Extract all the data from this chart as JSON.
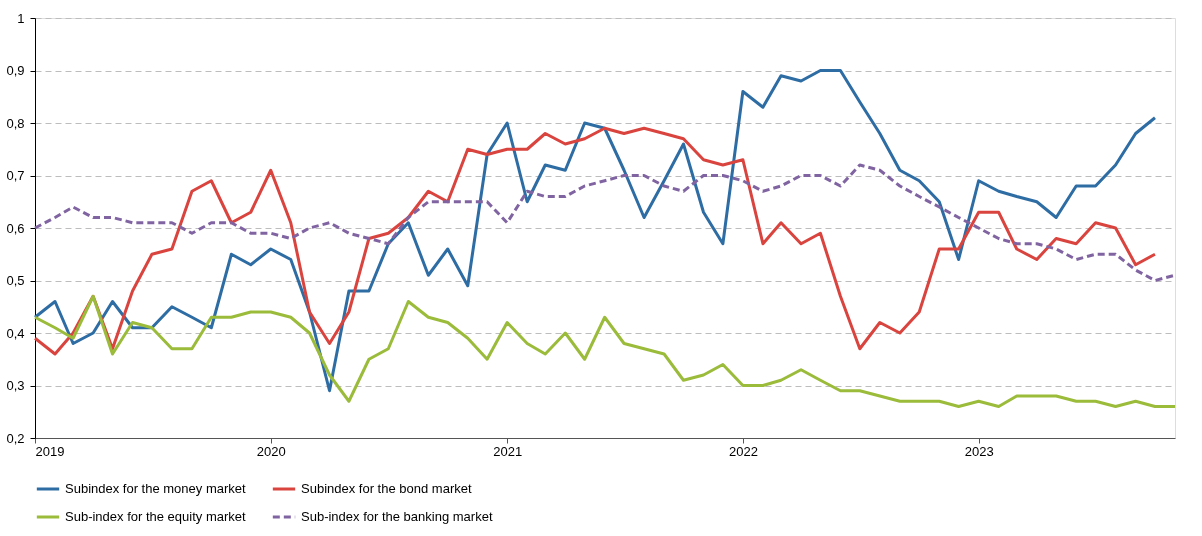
{
  "chart_data": {
    "type": "line",
    "x": [
      "2019-01",
      "2019-02",
      "2019-03",
      "2019-04",
      "2019-05",
      "2019-06",
      "2019-07",
      "2019-08",
      "2019-09",
      "2019-10",
      "2019-11",
      "2019-12",
      "2020-01",
      "2020-02",
      "2020-03",
      "2020-04",
      "2020-05",
      "2020-06",
      "2020-07",
      "2020-08",
      "2020-09",
      "2020-10",
      "2020-11",
      "2020-12",
      "2021-01",
      "2021-02",
      "2021-03",
      "2021-04",
      "2021-05",
      "2021-06",
      "2021-07",
      "2021-08",
      "2021-09",
      "2021-10",
      "2021-11",
      "2021-12",
      "2022-01",
      "2022-02",
      "2022-03",
      "2022-04",
      "2022-05",
      "2022-06",
      "2022-07",
      "2022-08",
      "2022-09",
      "2022-10",
      "2022-11",
      "2022-12",
      "2023-01",
      "2023-02",
      "2023-03",
      "2023-04",
      "2023-05",
      "2023-06",
      "2023-07",
      "2023-08",
      "2023-09",
      "2023-10",
      "2023-11"
    ],
    "series": [
      {
        "name": "Subindex for the money market",
        "color": "#2e6ca4",
        "line_style": "solid",
        "values": [
          0.43,
          0.46,
          0.38,
          0.4,
          0.46,
          0.41,
          0.41,
          0.45,
          0.43,
          0.41,
          0.55,
          0.53,
          0.56,
          0.54,
          0.44,
          0.29,
          0.48,
          0.48,
          0.57,
          0.61,
          0.51,
          0.56,
          0.49,
          0.74,
          0.8,
          0.65,
          0.72,
          0.71,
          0.8,
          0.79,
          0.71,
          0.62,
          0.69,
          0.76,
          0.63,
          0.57,
          0.86,
          0.83,
          0.89,
          0.88,
          0.9,
          0.9,
          0.84,
          0.78,
          0.71,
          0.69,
          0.65,
          0.54,
          0.69,
          0.67,
          0.66,
          0.65,
          0.62,
          0.68,
          0.68,
          0.72,
          0.78,
          0.81,
          null
        ]
      },
      {
        "name": "Subindex for the bond market",
        "color": "#d9443f",
        "line_style": "solid",
        "values": [
          0.39,
          0.36,
          0.4,
          0.47,
          0.37,
          0.48,
          0.55,
          0.56,
          0.67,
          0.69,
          0.61,
          0.63,
          0.71,
          0.61,
          0.44,
          0.38,
          0.44,
          0.58,
          0.59,
          0.62,
          0.67,
          0.65,
          0.75,
          0.74,
          0.75,
          0.75,
          0.78,
          0.76,
          0.77,
          0.79,
          0.78,
          0.79,
          0.78,
          0.77,
          0.73,
          0.72,
          0.73,
          0.57,
          0.61,
          0.57,
          0.59,
          0.47,
          0.37,
          0.42,
          0.4,
          0.44,
          0.56,
          0.56,
          0.63,
          0.63,
          0.56,
          0.54,
          0.58,
          0.57,
          0.61,
          0.6,
          0.53,
          0.55,
          null
        ]
      },
      {
        "name": "Sub-index for the equity market",
        "color": "#9bbb3b",
        "line_style": "solid",
        "values": [
          0.43,
          0.41,
          0.39,
          0.47,
          0.36,
          0.42,
          0.41,
          0.37,
          0.37,
          0.43,
          0.43,
          0.44,
          0.44,
          0.43,
          0.4,
          0.32,
          0.27,
          0.35,
          0.37,
          0.46,
          0.43,
          0.42,
          0.39,
          0.35,
          0.42,
          0.38,
          0.36,
          0.4,
          0.35,
          0.43,
          0.38,
          0.37,
          0.36,
          0.31,
          0.32,
          0.34,
          0.3,
          0.3,
          0.31,
          0.33,
          0.31,
          0.29,
          0.29,
          0.28,
          0.27,
          0.27,
          0.27,
          0.26,
          0.27,
          0.26,
          0.28,
          0.28,
          0.28,
          0.27,
          0.27,
          0.26,
          0.27,
          0.26,
          0.26
        ]
      },
      {
        "name": "Sub-index for the banking market",
        "color": "#8064a2",
        "line_style": "dashed",
        "values": [
          0.6,
          0.62,
          0.64,
          0.62,
          0.62,
          0.61,
          0.61,
          0.61,
          0.59,
          0.61,
          0.61,
          0.59,
          0.59,
          0.58,
          0.6,
          0.61,
          0.59,
          0.58,
          0.57,
          0.62,
          0.65,
          0.65,
          0.65,
          0.65,
          0.61,
          0.67,
          0.66,
          0.66,
          0.68,
          0.69,
          0.7,
          0.7,
          0.68,
          0.67,
          0.7,
          0.7,
          0.69,
          0.67,
          0.68,
          0.7,
          0.7,
          0.68,
          0.72,
          0.71,
          0.68,
          0.66,
          0.64,
          0.62,
          0.6,
          0.58,
          0.57,
          0.57,
          0.56,
          0.54,
          0.55,
          0.55,
          0.52,
          0.5,
          0.51
        ]
      }
    ],
    "xlim": [
      "2019-01",
      "2023-11"
    ],
    "xticks": [
      "2019",
      "2020",
      "2021",
      "2022",
      "2023"
    ],
    "ylim": [
      0.2,
      1
    ],
    "yticks": [
      {
        "value": 0.2,
        "label": "0,2"
      },
      {
        "value": 0.3,
        "label": "0,3"
      },
      {
        "value": 0.4,
        "label": "0,4"
      },
      {
        "value": 0.5,
        "label": "0,5"
      },
      {
        "value": 0.6,
        "label": "0,6"
      },
      {
        "value": 0.7,
        "label": "0,7"
      },
      {
        "value": 0.8,
        "label": "0,8"
      },
      {
        "value": 0.9,
        "label": "0,9"
      },
      1
    ],
    "grid": "y",
    "legend": "bottom",
    "marker": "none"
  }
}
